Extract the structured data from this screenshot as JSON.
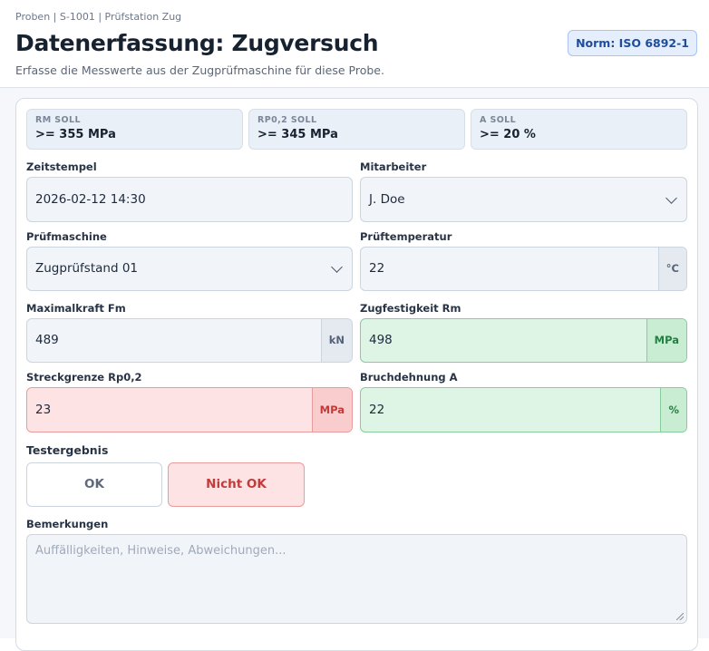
{
  "header": {
    "breadcrumb": "Proben | S-1001 | Prüfstation Zug",
    "title": "Datenerfassung: Zugversuch",
    "subtitle": "Erfasse die Messwerte aus der Zugprüfmaschine für diese Probe.",
    "norm_badge": "Norm: ISO 6892-1"
  },
  "specs": [
    {
      "label": "RM SOLL",
      "value": ">= 355 MPa"
    },
    {
      "label": "RP0,2 SOLL",
      "value": ">= 345 MPa"
    },
    {
      "label": "A SOLL",
      "value": ">= 20 %"
    }
  ],
  "fields": {
    "timestamp": {
      "label": "Zeitstempel",
      "value": "2026-02-12 14:30"
    },
    "operator": {
      "label": "Mitarbeiter",
      "value": "J. Doe"
    },
    "machine": {
      "label": "Prüfmaschine",
      "value": "Zugprüfstand 01"
    },
    "temperature": {
      "label": "Prüftemperatur",
      "value": "22",
      "unit": "°C"
    },
    "max_force": {
      "label": "Maximalkraft Fm",
      "value": "489",
      "unit": "kN"
    },
    "tensile_strength": {
      "label": "Zugfestigkeit Rm",
      "value": "498",
      "unit": "MPa",
      "status": "ok"
    },
    "yield_strength": {
      "label": "Streckgrenze Rp0,2",
      "value": "23",
      "unit": "MPa",
      "status": "fail"
    },
    "elongation": {
      "label": "Bruchdehnung A",
      "value": "22",
      "unit": "%",
      "status": "ok"
    }
  },
  "result": {
    "label": "Testergebnis",
    "ok_label": "OK",
    "nok_label": "Nicht OK",
    "selected": "Nicht OK"
  },
  "remarks": {
    "label": "Bemerkungen",
    "placeholder": "Auffälligkeiten, Hinweise, Abweichungen..."
  },
  "colors": {
    "ok": "#238042",
    "fail": "#c33a3a",
    "accent": "#1f4d9e"
  }
}
